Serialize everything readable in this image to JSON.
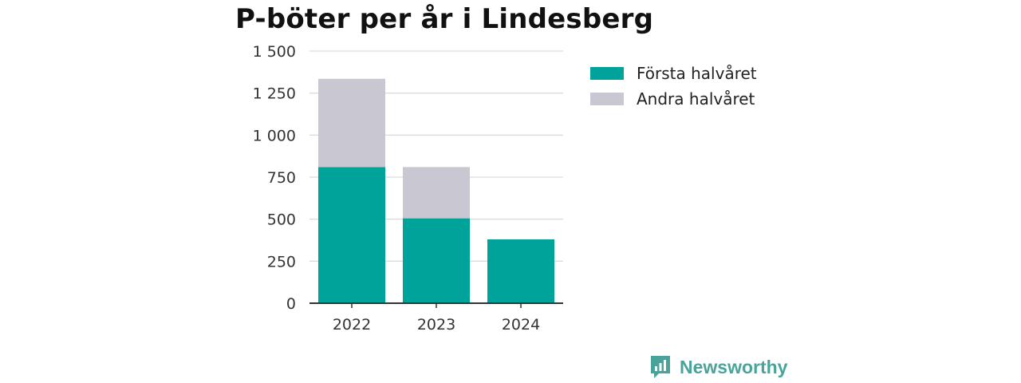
{
  "chart_data": {
    "type": "bar",
    "stacked": true,
    "title": "P-böter per år i Lindesberg",
    "categories": [
      "2022",
      "2023",
      "2024"
    ],
    "series": [
      {
        "name": "Första halvåret",
        "color": "#00a39a",
        "values": [
          810,
          505,
          380
        ]
      },
      {
        "name": "Andra halvåret",
        "color": "#c8c7d2",
        "values": [
          525,
          305,
          0
        ]
      }
    ],
    "ylim": [
      0,
      1500
    ],
    "yticks": [
      0,
      250,
      500,
      750,
      1000,
      1250,
      1500
    ],
    "ytick_labels": [
      "0",
      "250",
      "500",
      "750",
      "1 000",
      "1 250",
      "1 500"
    ],
    "grid": true,
    "legend_position": "right"
  },
  "brand": {
    "name": "Newsworthy",
    "logo_icon": "newsworthy-logo-icon",
    "color": "#4aa39a"
  }
}
